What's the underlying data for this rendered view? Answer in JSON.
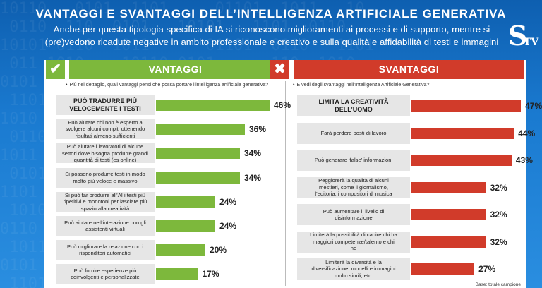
{
  "title": "VANTAGGI E SVANTAGGI DELL’INTELLIGENZA ARTIFICIALE GENERATIVA",
  "subtitle_line1": "Anche per questa tipologia specifica di IA si riconoscono miglioramenti ai processi e di supporto, mentre si",
  "subtitle_line2": "(pre)vedono ricadute negative in ambito professionale e creativo e sulla qualità e affidabilità di testi e immagini",
  "logo": {
    "letter": "S",
    "tv": "TV"
  },
  "base_note": "Base: totale campione",
  "colors": {
    "green": "#7db83c",
    "red": "#d13b2a",
    "label_bg": "#e6e6e6"
  },
  "chart_data": [
    {
      "type": "bar",
      "title": "VANTAGGI",
      "icon": "check-icon",
      "question": "Più nel dettaglio, quali vantaggi pensi che possa portare l’intelligenza artificiale generativa?",
      "categories": [
        "Può tradurre più velocemente i testi",
        "Può aiutare chi non è esperto a svolgere alcuni compiti ottenendo risultati almeno sufficienti",
        "Può aiutare i lavoratori di alcune settori dove bisogna produrre grandi quantità di testi (es online)",
        "Si possono produrre testi in modo molto più veloce e massivo",
        "Si può far produrre all’AI i testi più ripetitivi e monotoni per lasciare più spazio alla creatività",
        "Può aiutare nell’interazione con gli assistenti virtuali",
        "Può migliorare la relazione con i risponditori automatici",
        "Può fornire esperienze più coinvolgenti e personalizzate"
      ],
      "display_lines": [
        [
          "PUÒ TRADURRE PIÙ",
          "VELOCEMENTE I TESTI"
        ],
        [
          "Può aiutare chi non è esperto a",
          "svolgere alcuni compiti ottenendo",
          "risultati almeno sufficienti"
        ],
        [
          "Può aiutare i lavoratori di alcune",
          "settori dove bisogna produrre grandi",
          "quantità di testi (es online)"
        ],
        [
          "Si possono produrre testi in modo",
          "molto più veloce e massivo"
        ],
        [
          "Si può far produrre all’AI i testi più",
          "ripetitivi e monotoni per lasciare più",
          "spazio alla creatività"
        ],
        [
          "Può aiutare nell’interazione con gli",
          "assistenti virtuali"
        ],
        [
          "Può migliorare la relazione con i",
          "risponditori automatici"
        ],
        [
          "Può fornire esperienze più",
          "coinvolgenti e personalizzate"
        ]
      ],
      "values": [
        46,
        36,
        34,
        34,
        24,
        24,
        20,
        17
      ],
      "value_labels": [
        "46%",
        "36%",
        "34%",
        "34%",
        "24%",
        "24%",
        "20%",
        "17%"
      ],
      "highlight_first": true
    },
    {
      "type": "bar",
      "title": "SVANTAGGI",
      "icon": "cross-icon",
      "question": "E vedi degli svantaggi nell’Intelligenza Artificiale Generativa?",
      "categories": [
        "Limita la creatività dell’uomo",
        "Farà perdere posti di lavoro",
        "Può generare ‘false’ informazioni",
        "Peggiorerà la qualità di alcuni mestieri, come il giornalismo, l’editoria, i compositori di musica",
        "Può aumentare il livello di disinformazione",
        "Limiterà la possibilità di capire chi ha maggiori competenze/talento e chi no",
        "Limiterà la diversità e la diversificazione: modelli e immagini molto simili, etc."
      ],
      "display_lines": [
        [
          "LIMITA LA CREATIVITÀ",
          "DELL’UOMO"
        ],
        [
          "Farà perdere posti di lavoro"
        ],
        [
          "Può generare ‘false’ informazioni"
        ],
        [
          "Peggiorerà la qualità di alcuni",
          "mestieri, come il giornalismo,",
          "l’editoria, i compositori di musica"
        ],
        [
          "Può aumentare il livello di",
          "disinformazione"
        ],
        [
          "Limiterà la possibilità di capire chi ha",
          "maggiori competenze/talento e chi",
          "no"
        ],
        [
          "Limiterà la diversità e la",
          "diversificazione: modelli e immagini",
          "molto simili, etc."
        ]
      ],
      "values": [
        47,
        44,
        43,
        32,
        32,
        32,
        27
      ],
      "value_labels": [
        "47%",
        "44%",
        "43%",
        "32%",
        "32%",
        "32%",
        "27%"
      ],
      "highlight_first": true
    }
  ]
}
